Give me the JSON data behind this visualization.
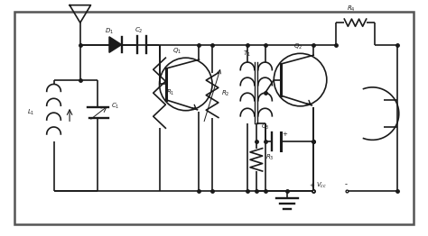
{
  "bg_color": "#ffffff",
  "wire_color": "#1a1a1a",
  "lw": 1.2,
  "fig_w": 4.74,
  "fig_h": 2.62,
  "dpi": 100
}
